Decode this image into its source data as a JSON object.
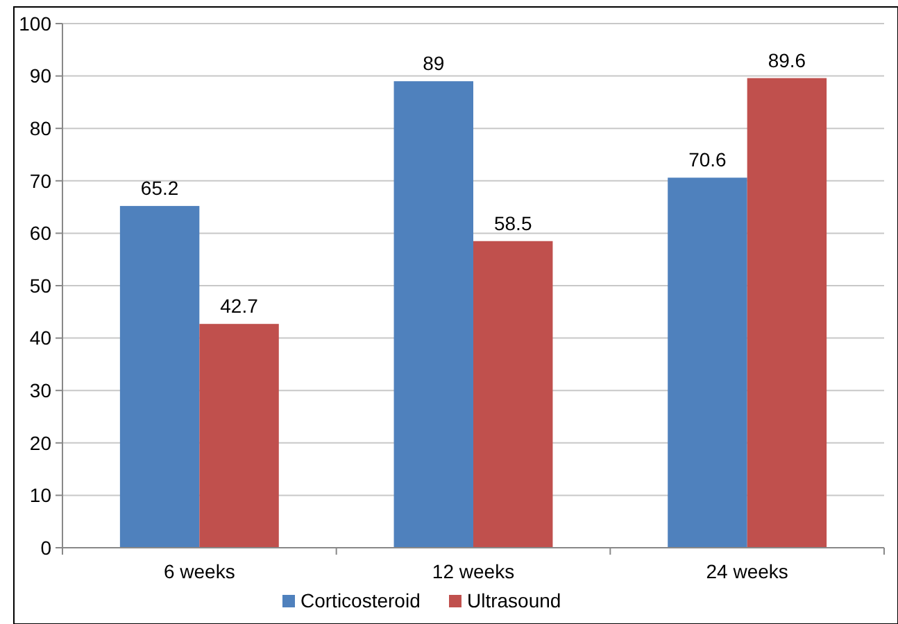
{
  "chart_data": {
    "type": "bar",
    "categories": [
      "6 weeks",
      "12 weeks",
      "24 weeks"
    ],
    "series": [
      {
        "name": "Corticosteroid",
        "color": "#4f81bd",
        "values": [
          65.2,
          89,
          70.6
        ]
      },
      {
        "name": "Ultrasound",
        "color": "#c0504d",
        "values": [
          42.7,
          58.5,
          89.6
        ]
      }
    ],
    "ylim": [
      0,
      100
    ],
    "yticks": [
      0,
      10,
      20,
      30,
      40,
      50,
      60,
      70,
      80,
      90,
      100
    ],
    "grid": "y",
    "legend": "bottom",
    "data_labels": true
  }
}
